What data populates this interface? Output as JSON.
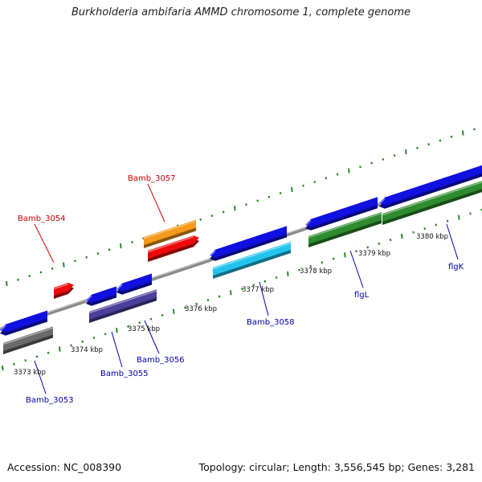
{
  "title": "Burkholderia ambifaria AMMD chromosome 1, complete genome",
  "footer": {
    "accession": "Accession: NC_008390",
    "stats": "Topology: circular; Length: 3,556,545 bp; Genes: 3,281"
  },
  "colors": {
    "backbone": "#8a8a8a",
    "ticks": "#2a8a2a",
    "tick_label": "#111111",
    "gene_label_forward": "#cc0000",
    "gene_label_reverse": "#0000aa",
    "blue": "#1010e0",
    "red": "#ee0a0a",
    "orange": "#f59a1a",
    "gray": "#6a6a6a",
    "slate": "#4a3f9a",
    "cyan": "#22c4ee",
    "green": "#2e8b2e"
  },
  "scale_labels": [
    "3373 kbp",
    "3374 kbp",
    "3375 kbp",
    "3376 kbp",
    "3377 kbp",
    "3378 kbp",
    "3379 kbp",
    "3380 kbp"
  ],
  "gene_labels": [
    {
      "id": "bamb-3054",
      "text": "Bamb_3054",
      "strand": "forward"
    },
    {
      "id": "bamb-3057",
      "text": "Bamb_3057",
      "strand": "forward"
    },
    {
      "id": "bamb-3053",
      "text": "Bamb_3053",
      "strand": "reverse"
    },
    {
      "id": "bamb-3055",
      "text": "Bamb_3055",
      "strand": "reverse"
    },
    {
      "id": "bamb-3056",
      "text": "Bamb_3056",
      "strand": "reverse"
    },
    {
      "id": "bamb-3058",
      "text": "Bamb_3058",
      "strand": "reverse"
    },
    {
      "id": "flgl",
      "text": "flgL",
      "strand": "reverse"
    },
    {
      "id": "flgk",
      "text": "flgK",
      "strand": "reverse"
    }
  ]
}
